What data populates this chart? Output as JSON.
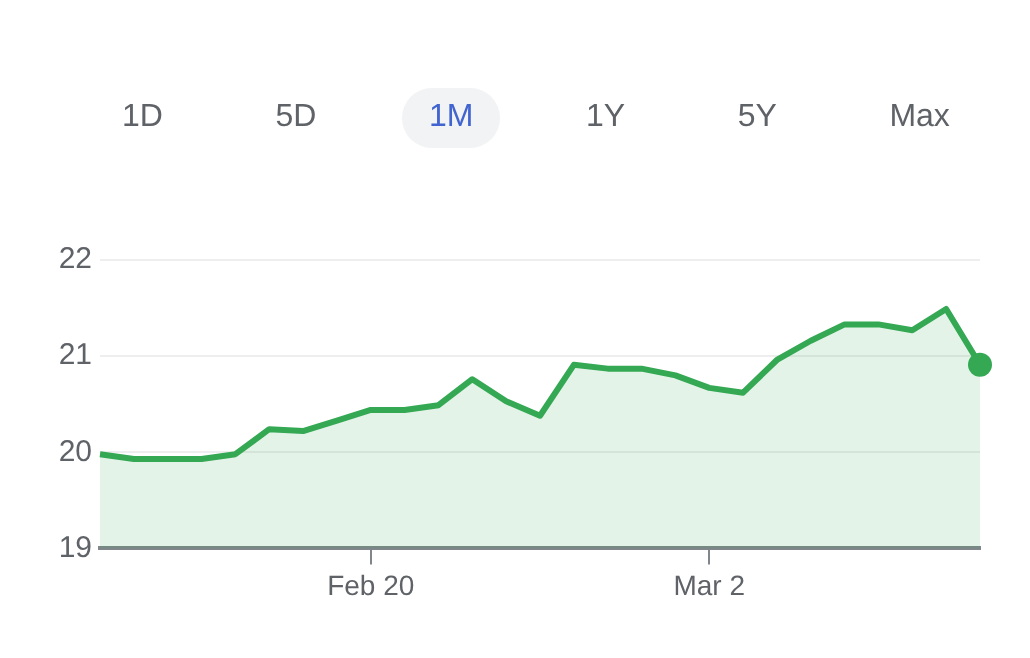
{
  "chart_data": {
    "type": "area",
    "categories": [
      null,
      null,
      null,
      null,
      null,
      null,
      null,
      null,
      "Feb 20",
      null,
      null,
      null,
      null,
      null,
      null,
      null,
      null,
      null,
      "Mar 2",
      null,
      null,
      null,
      null,
      null,
      null,
      null,
      null
    ],
    "series": [
      {
        "color": "#34a853",
        "values": [
          19.98,
          19.93,
          19.93,
          19.93,
          19.98,
          20.24,
          20.22,
          20.33,
          20.44,
          20.44,
          20.49,
          20.76,
          20.53,
          20.38,
          20.91,
          20.87,
          20.87,
          20.8,
          20.67,
          20.62,
          20.96,
          21.16,
          21.33,
          21.33,
          21.27,
          21.49,
          20.91
        ]
      }
    ],
    "ylim": [
      19,
      22
    ],
    "yticks": [
      19,
      20,
      21,
      22
    ],
    "grid": "y",
    "legend": false,
    "annotations": [
      "1D",
      "5D",
      "1M",
      "1Y",
      "5Y",
      "Max"
    ]
  }
}
